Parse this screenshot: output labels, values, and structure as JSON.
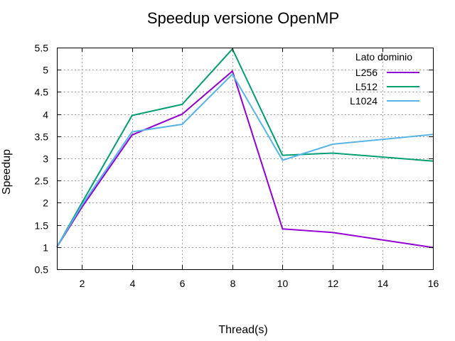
{
  "chart_data": {
    "type": "line",
    "title": "Speedup versione OpenMP",
    "xlabel": "Thread(s)",
    "ylabel": "Speedup",
    "xlim": [
      1,
      16
    ],
    "ylim": [
      0.5,
      5.5
    ],
    "xticks": [
      2,
      4,
      6,
      8,
      10,
      12,
      14,
      16
    ],
    "xtick_labels": [
      "2",
      "4",
      "6",
      "8",
      "10",
      "12",
      "14",
      "16"
    ],
    "yticks": [
      0.5,
      1,
      1.5,
      2,
      2.5,
      3,
      3.5,
      4,
      4.5,
      5,
      5.5
    ],
    "ytick_labels": [
      "0.5",
      "1",
      "1.5",
      "2",
      "2.5",
      "3",
      "3.5",
      "4",
      "4.5",
      "5",
      "5.5"
    ],
    "grid": true,
    "legend": {
      "title": "Lato dominio",
      "placement": "top-right"
    },
    "x": [
      1,
      2,
      4,
      6,
      8,
      10,
      12,
      16
    ],
    "series": [
      {
        "name": "L256",
        "color": "#9400d3",
        "values": [
          1.0,
          1.9,
          3.53,
          4.0,
          4.97,
          1.41,
          1.33,
          0.99
        ]
      },
      {
        "name": "L512",
        "color": "#009e73",
        "values": [
          1.0,
          2.0,
          3.97,
          4.22,
          5.47,
          3.07,
          3.12,
          2.94
        ]
      },
      {
        "name": "L1024",
        "color": "#56b4e9",
        "values": [
          1.0,
          1.95,
          3.6,
          3.77,
          4.9,
          2.96,
          3.32,
          3.54
        ]
      }
    ]
  }
}
